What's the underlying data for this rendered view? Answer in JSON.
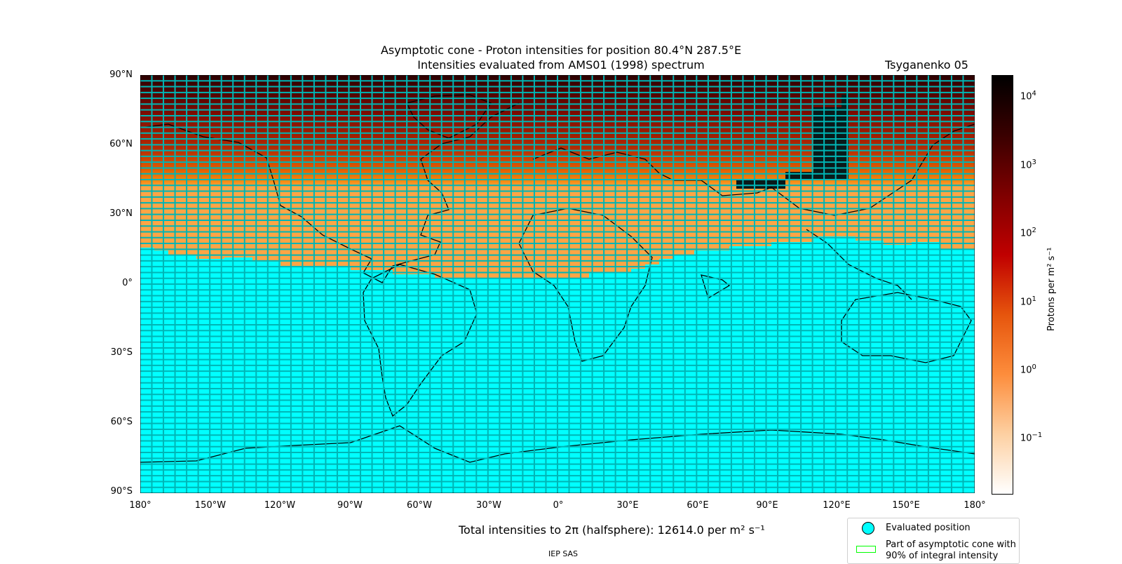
{
  "map": {
    "title_line1": "Asymptotic cone - Proton intensities for position 80.4°N 287.5°E",
    "title_line2": "Intensities evaluated from AMS01 (1998) spectrum",
    "model_label": "Tsyganenko 05",
    "lat_labels": [
      "90°N",
      "60°N",
      "30°N",
      "0°",
      "30°S",
      "60°S",
      "90°S"
    ],
    "lon_labels": [
      "180°",
      "150°W",
      "120°W",
      "90°W",
      "60°W",
      "30°W",
      "0°",
      "30°E",
      "60°E",
      "90°E",
      "120°E",
      "150°E",
      "180°"
    ],
    "grid_color": "#00b5b5",
    "empty_cell_color": "#00ffff",
    "coastline_color": "#000000"
  },
  "colorbar": {
    "tick_labels": [
      "10",
      "10",
      "10",
      "10",
      "10",
      "10"
    ],
    "tick_exponents": [
      "4",
      "3",
      "2",
      "1",
      "0",
      "−1"
    ],
    "label": "Protons per m² s⁻¹",
    "gradient_stops": [
      "#ffffff",
      "#fdd0a2",
      "#fd8d3c",
      "#e6550d",
      "#c00000",
      "#7f0000",
      "#3a0000",
      "#000000"
    ]
  },
  "summary": {
    "total_text": "Total intensities to 2π (halfsphere): 12614.0 per m² s⁻¹"
  },
  "legend": {
    "evaluated_label": "Evaluated position",
    "cone_label": "Part of asymptotic cone with 90% of integral intensity",
    "evaluated_color": "#00ffff",
    "cone_color": "#00ff00"
  },
  "footer": "IEP SAS"
}
